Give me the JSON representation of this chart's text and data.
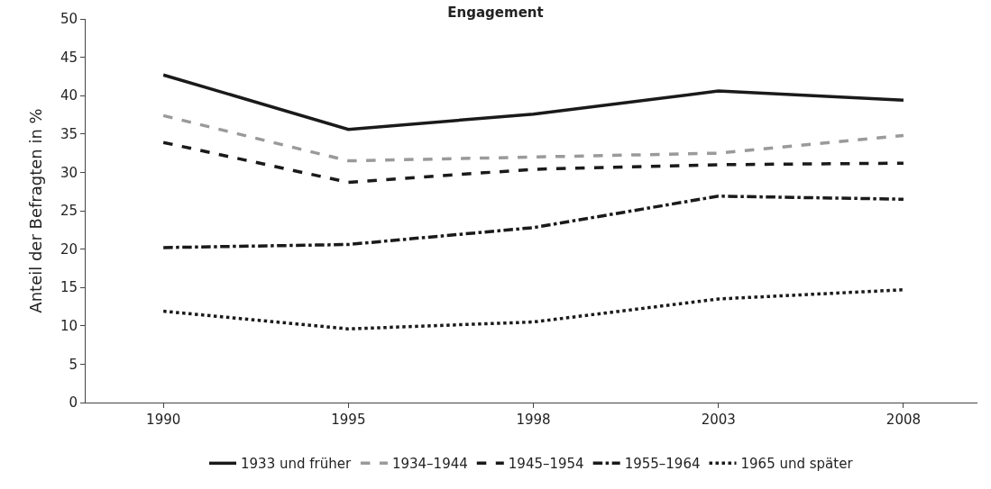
{
  "chart_data": {
    "type": "line",
    "title": "Engagement",
    "ylabel": "Anteil der Befragten in %",
    "categories": [
      "1990",
      "1995",
      "1998",
      "2003",
      "2008"
    ],
    "ylim": [
      0,
      50
    ],
    "yticks": [
      0,
      5,
      10,
      15,
      20,
      25,
      30,
      35,
      40,
      45,
      50
    ],
    "legend": "bottom",
    "marker": "none",
    "series": [
      {
        "name": "1933 und früher",
        "color": "#1a1a1a",
        "line_style": "solid",
        "values": [
          42.7,
          35.6,
          37.6,
          40.6,
          39.4
        ]
      },
      {
        "name": "1934–1944",
        "color": "#9a9a9a",
        "line_style": "dashed",
        "values": [
          37.4,
          31.5,
          32.0,
          32.5,
          34.8
        ]
      },
      {
        "name": "1945–1954",
        "color": "#1a1a1a",
        "line_style": "dashed",
        "values": [
          33.9,
          28.7,
          30.4,
          31.0,
          31.2
        ]
      },
      {
        "name": "1955–1964",
        "color": "#1a1a1a",
        "line_style": "dashdot",
        "values": [
          20.2,
          20.6,
          22.8,
          26.9,
          26.5
        ]
      },
      {
        "name": "1965 und später",
        "color": "#1a1a1a",
        "line_style": "dotted",
        "values": [
          11.9,
          9.6,
          10.5,
          13.5,
          14.7
        ]
      }
    ]
  }
}
